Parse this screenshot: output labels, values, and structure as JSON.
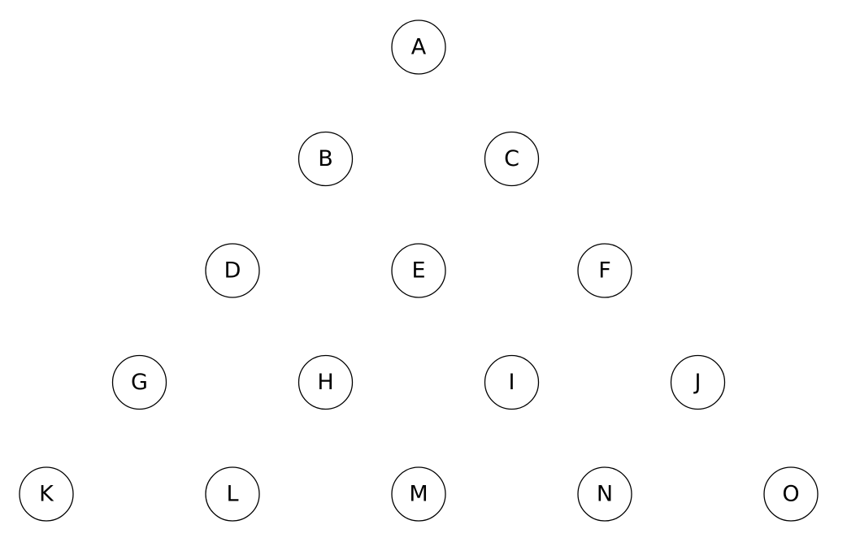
{
  "diagram": {
    "rows": [
      [
        "A"
      ],
      [
        "B",
        "C"
      ],
      [
        "D",
        "E",
        "F"
      ],
      [
        "G",
        "H",
        "I",
        "J"
      ],
      [
        "K",
        "L",
        "M",
        "N",
        "O"
      ]
    ]
  }
}
